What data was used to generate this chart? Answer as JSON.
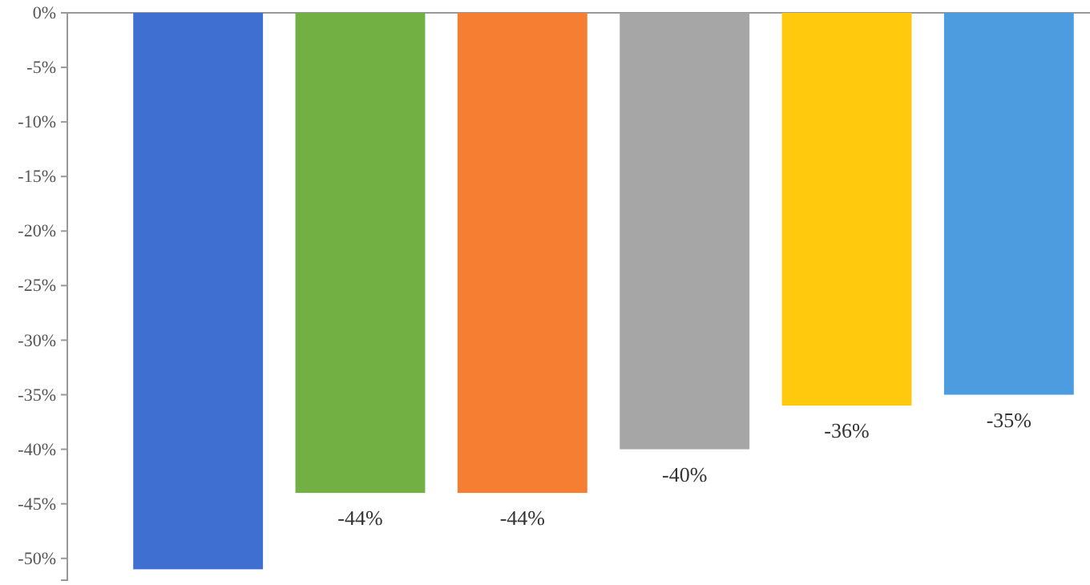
{
  "chart_data": {
    "type": "bar",
    "categories": [
      null,
      null,
      null,
      null,
      null,
      null
    ],
    "values": [
      -51,
      -44,
      -44,
      -40,
      -36,
      -35
    ],
    "colors": [
      "#3f6fd0",
      "#72b043",
      "#f57e33",
      "#a6a6a6",
      "#ffc90e",
      "#4d9ce0"
    ],
    "value_labels": [
      null,
      "-44%",
      "-44%",
      "-40%",
      "-36%",
      "-35%"
    ],
    "ylim": [
      -52,
      0
    ],
    "yticks": [
      {
        "value": 0,
        "label": "0%"
      },
      {
        "value": -5,
        "label": "-5%"
      },
      {
        "value": -10,
        "label": "-10%"
      },
      {
        "value": -15,
        "label": "-15%"
      },
      {
        "value": -20,
        "label": "-20%"
      },
      {
        "value": -25,
        "label": "-25%"
      },
      {
        "value": -30,
        "label": "-30%"
      },
      {
        "value": -35,
        "label": "-35%"
      },
      {
        "value": -40,
        "label": "-40%"
      },
      {
        "value": -45,
        "label": "-45%"
      },
      {
        "value": -50,
        "label": "-50%"
      }
    ],
    "tick_labels": "y",
    "grid": false
  }
}
